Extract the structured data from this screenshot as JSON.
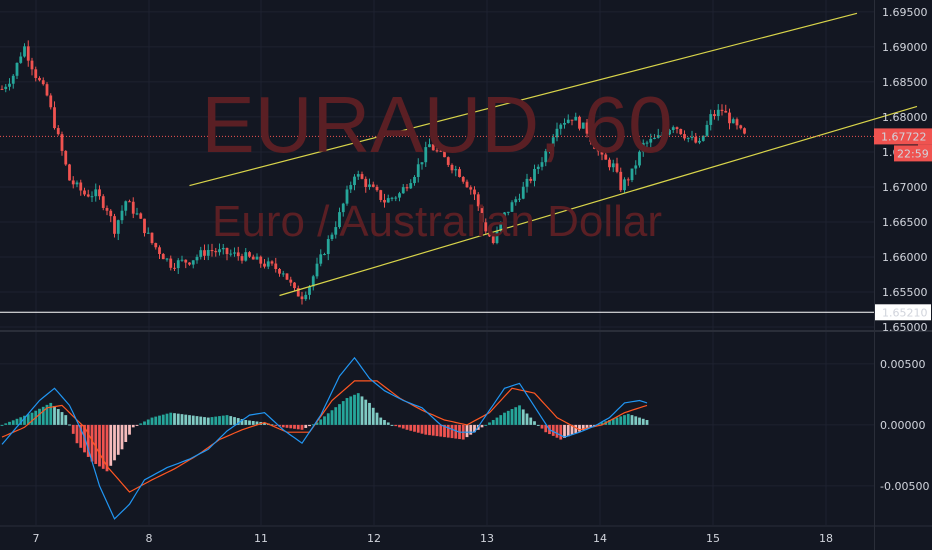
{
  "watermark": {
    "symbol": "EURAUD, 60",
    "description": "Euro / Australian Dollar"
  },
  "colors": {
    "background": "#131722",
    "grid": "#1e2230",
    "up": "#26a69a",
    "down": "#ef5350",
    "up_light": "#80cbc4",
    "down_light": "#f7bcbc",
    "trendline": "#d8d44a",
    "macd": "#2196f3",
    "signal": "#ff5722",
    "axis_text": "#d1d4dc",
    "level_line": "#ffffff"
  },
  "labels": {
    "price_now": "1.67722",
    "countdown": "22:59",
    "level": "1.65210"
  },
  "chart_data": [
    {
      "type": "candlestick",
      "pair": "EURAUD",
      "timeframe": "60",
      "x_labels": [
        "7",
        "8",
        "11",
        "12",
        "13",
        "14",
        "15",
        "18"
      ],
      "y_ticks": [
        "1.69500",
        "1.69000",
        "1.68500",
        "1.68000",
        "1.67500",
        "1.67000",
        "1.66500",
        "1.66000",
        "1.65500",
        "1.65000"
      ],
      "ylim": [
        1.65,
        1.6967
      ],
      "current_price": 1.67722,
      "horizontal_line": 1.6521,
      "approx_close_path": [
        [
          0,
          1.684
        ],
        [
          3,
          1.686
        ],
        [
          5,
          1.689
        ],
        [
          6,
          1.69
        ],
        [
          9,
          1.686
        ],
        [
          12,
          1.683
        ],
        [
          15,
          1.677
        ],
        [
          18,
          1.671
        ],
        [
          22,
          1.669
        ],
        [
          25,
          1.669
        ],
        [
          28,
          1.667
        ],
        [
          30,
          1.664
        ],
        [
          33,
          1.668
        ],
        [
          36,
          1.666
        ],
        [
          40,
          1.662
        ],
        [
          45,
          1.659
        ],
        [
          50,
          1.6595
        ],
        [
          55,
          1.661
        ],
        [
          60,
          1.6605
        ],
        [
          65,
          1.66
        ],
        [
          70,
          1.659
        ],
        [
          75,
          1.658
        ],
        [
          78,
          1.655
        ],
        [
          80,
          1.6545
        ],
        [
          82,
          1.656
        ],
        [
          86,
          1.661
        ],
        [
          90,
          1.666
        ],
        [
          94,
          1.672
        ],
        [
          98,
          1.67
        ],
        [
          102,
          1.668
        ],
        [
          106,
          1.669
        ],
        [
          110,
          1.672
        ],
        [
          114,
          1.676
        ],
        [
          118,
          1.674
        ],
        [
          122,
          1.672
        ],
        [
          126,
          1.669
        ],
        [
          128,
          1.665
        ],
        [
          131,
          1.662
        ],
        [
          134,
          1.666
        ],
        [
          138,
          1.669
        ],
        [
          142,
          1.672
        ],
        [
          145,
          1.675
        ],
        [
          148,
          1.679
        ],
        [
          152,
          1.68
        ],
        [
          156,
          1.678
        ],
        [
          160,
          1.674
        ],
        [
          163,
          1.673
        ],
        [
          165,
          1.67
        ],
        [
          168,
          1.672
        ],
        [
          171,
          1.676
        ],
        [
          175,
          1.677
        ],
        [
          179,
          1.679
        ],
        [
          183,
          1.677
        ],
        [
          186,
          1.676
        ],
        [
          189,
          1.68
        ],
        [
          192,
          1.681
        ],
        [
          195,
          1.679
        ],
        [
          198,
          1.6772
        ]
      ],
      "channel_upper": [
        [
          50,
          1.6702
        ],
        [
          228,
          1.6948
        ]
      ],
      "channel_lower": [
        [
          74,
          1.6545
        ],
        [
          244,
          1.6815
        ]
      ]
    },
    {
      "type": "macd",
      "y_ticks": [
        "0.00500",
        "0.00000",
        "-0.00500"
      ],
      "ylim": [
        -0.0082,
        0.0072
      ],
      "approx_histogram": [
        [
          0,
          0.0
        ],
        [
          8,
          0.001
        ],
        [
          13,
          0.0018
        ],
        [
          17,
          0.0008
        ],
        [
          20,
          -0.0015
        ],
        [
          24,
          -0.003
        ],
        [
          28,
          -0.0038
        ],
        [
          32,
          -0.002
        ],
        [
          35,
          -0.0002
        ],
        [
          40,
          0.0006
        ],
        [
          45,
          0.001
        ],
        [
          50,
          0.0008
        ],
        [
          55,
          0.0006
        ],
        [
          60,
          0.0008
        ],
        [
          65,
          0.0004
        ],
        [
          70,
          0.0002
        ],
        [
          75,
          -0.0002
        ],
        [
          80,
          -0.0004
        ],
        [
          84,
          0.0002
        ],
        [
          88,
          0.0012
        ],
        [
          92,
          0.0022
        ],
        [
          95,
          0.0026
        ],
        [
          98,
          0.0018
        ],
        [
          101,
          0.0006
        ],
        [
          104,
          0.0
        ],
        [
          108,
          -0.0004
        ],
        [
          113,
          -0.0008
        ],
        [
          118,
          -0.001
        ],
        [
          123,
          -0.0012
        ],
        [
          126,
          -0.0006
        ],
        [
          130,
          0.0002
        ],
        [
          134,
          0.001
        ],
        [
          138,
          0.0016
        ],
        [
          141,
          0.0006
        ],
        [
          145,
          -0.0006
        ],
        [
          149,
          -0.0012
        ],
        [
          152,
          -0.0008
        ],
        [
          156,
          -0.0003
        ],
        [
          160,
          0.0002
        ],
        [
          164,
          0.0006
        ],
        [
          167,
          0.0009
        ],
        [
          170,
          0.0006
        ],
        [
          172,
          0.0004
        ]
      ],
      "approx_macd": [
        [
          0,
          -0.0016
        ],
        [
          5,
          0.0002
        ],
        [
          10,
          0.002
        ],
        [
          14,
          0.003
        ],
        [
          18,
          0.0016
        ],
        [
          22,
          -0.001
        ],
        [
          26,
          -0.005
        ],
        [
          30,
          -0.0077
        ],
        [
          34,
          -0.0065
        ],
        [
          38,
          -0.0045
        ],
        [
          44,
          -0.0035
        ],
        [
          50,
          -0.0028
        ],
        [
          55,
          -0.002
        ],
        [
          60,
          -0.0005
        ],
        [
          66,
          0.0008
        ],
        [
          70,
          0.001
        ],
        [
          75,
          -0.0004
        ],
        [
          80,
          -0.0015
        ],
        [
          85,
          0.0008
        ],
        [
          90,
          0.004
        ],
        [
          94,
          0.0055
        ],
        [
          98,
          0.0038
        ],
        [
          102,
          0.0028
        ],
        [
          107,
          0.002
        ],
        [
          112,
          0.0014
        ],
        [
          117,
          0.0
        ],
        [
          122,
          -0.0006
        ],
        [
          126,
          -0.0006
        ],
        [
          130,
          0.0012
        ],
        [
          134,
          0.003
        ],
        [
          138,
          0.0034
        ],
        [
          142,
          0.0015
        ],
        [
          146,
          -0.0004
        ],
        [
          150,
          -0.001
        ],
        [
          154,
          -0.0006
        ],
        [
          158,
          -0.0001
        ],
        [
          162,
          0.0006
        ],
        [
          166,
          0.0018
        ],
        [
          170,
          0.002
        ],
        [
          172,
          0.0018
        ]
      ],
      "approx_signal": [
        [
          0,
          -0.001
        ],
        [
          6,
          -0.0002
        ],
        [
          12,
          0.0014
        ],
        [
          16,
          0.0016
        ],
        [
          22,
          -0.0002
        ],
        [
          28,
          -0.0034
        ],
        [
          34,
          -0.0055
        ],
        [
          40,
          -0.0045
        ],
        [
          46,
          -0.0036
        ],
        [
          52,
          -0.0025
        ],
        [
          58,
          -0.0012
        ],
        [
          64,
          -0.0004
        ],
        [
          70,
          0.0002
        ],
        [
          76,
          -0.0006
        ],
        [
          82,
          -0.0006
        ],
        [
          88,
          0.002
        ],
        [
          94,
          0.0036
        ],
        [
          100,
          0.0036
        ],
        [
          106,
          0.0022
        ],
        [
          112,
          0.0012
        ],
        [
          118,
          0.0004
        ],
        [
          124,
          0.0
        ],
        [
          130,
          0.001
        ],
        [
          136,
          0.003
        ],
        [
          142,
          0.0026
        ],
        [
          148,
          0.0006
        ],
        [
          154,
          -0.0004
        ],
        [
          160,
          0.0
        ],
        [
          166,
          0.001
        ],
        [
          172,
          0.0016
        ]
      ]
    }
  ]
}
